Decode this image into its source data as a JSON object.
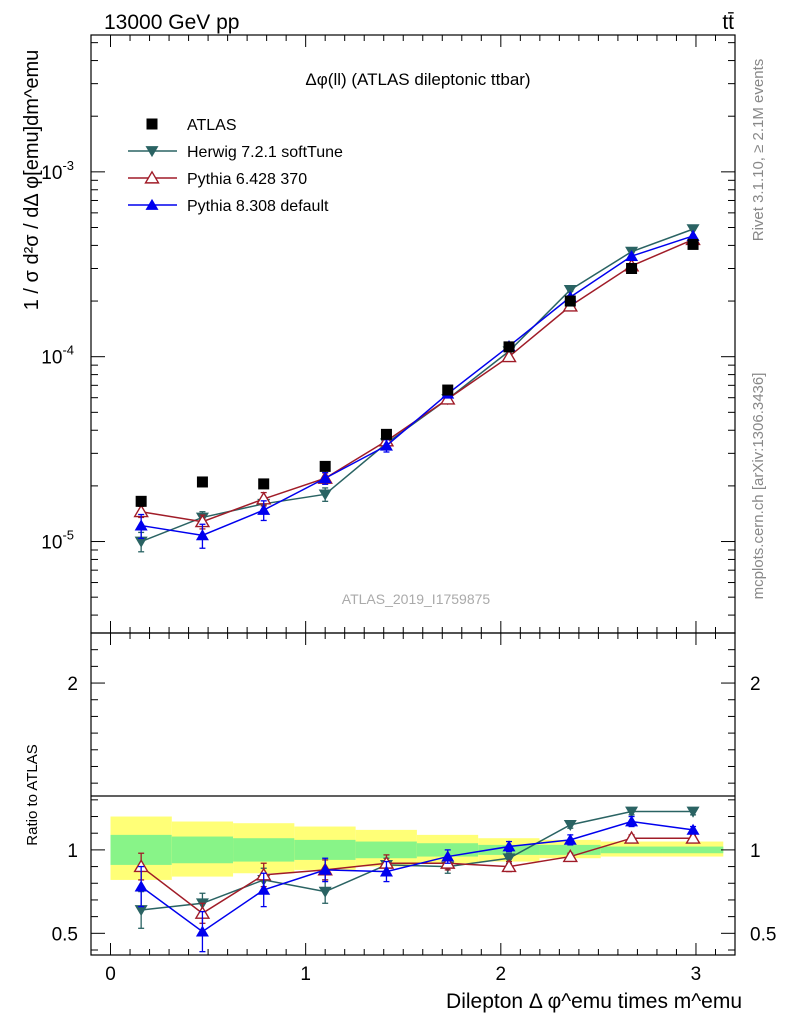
{
  "header": {
    "energy_label": "13000 GeV pp",
    "process_label": "tt̄"
  },
  "side_labels": {
    "rivet": "Rivet 3.1.10, ≥ 2.1M events",
    "mcplots": "mcplots.cern.ch [arXiv:1306.3436]"
  },
  "chart_data": [
    {
      "type": "scatter",
      "title": "Δφ(ll) (ATLAS dileptonic ttbar)",
      "watermark": "ATLAS_2019_I1759875",
      "ylabel": "1 / σ d²σ / dΔ φ[emu]dm^emu",
      "xlabel": "Dilepton Δ φ^emu times m^emu",
      "xlim": [
        -0.1,
        3.2
      ],
      "ylim": [
        3.2e-06,
        0.0055
      ],
      "yscale": "log",
      "x_ticks": [
        "0",
        "1",
        "2",
        "3"
      ],
      "y_ticks": [
        "10^-5",
        "10^-4",
        "10^-3"
      ],
      "legend_position": "top-left",
      "x": [
        0.157,
        0.471,
        0.785,
        1.1,
        1.414,
        1.728,
        2.042,
        2.356,
        2.67,
        2.985
      ],
      "series": [
        {
          "name": "ATLAS",
          "marker": "square",
          "color": "#000000",
          "values": [
            1.65e-05,
            2.1e-05,
            2.05e-05,
            2.55e-05,
            3.8e-05,
            6.6e-05,
            0.000113,
            0.0002,
            0.0003,
            0.000405
          ]
        },
        {
          "name": "Herwig 7.2.1 softTune",
          "marker": "triangle-down",
          "color": "#2a6363",
          "values": [
            1e-05,
            1.35e-05,
            1.6e-05,
            1.8e-05,
            3.4e-05,
            5.9e-05,
            0.000107,
            0.00023,
            0.00037,
            0.00049
          ],
          "errors": [
            1.2e-06,
            1e-06,
            1.2e-06,
            1.5e-06,
            1.2e-06,
            1.5e-06,
            3e-06,
            4e-06,
            5e-06,
            5e-06
          ]
        },
        {
          "name": "Pythia 6.428 370",
          "marker": "triangle-open",
          "color": "#a01c28",
          "values": [
            1.45e-05,
            1.28e-05,
            1.7e-05,
            2.2e-05,
            3.5e-05,
            5.9e-05,
            0.0001,
            0.000188,
            0.00031,
            0.00043
          ],
          "errors": [
            1e-06,
            1.1e-06,
            1.4e-06,
            1.5e-06,
            1.5e-06,
            2e-06,
            3e-06,
            4e-06,
            5e-06,
            5e-06
          ]
        },
        {
          "name": "Pythia 8.308 default",
          "marker": "triangle-up",
          "color": "#0000ee",
          "values": [
            1.22e-05,
            1.08e-05,
            1.48e-05,
            2.2e-05,
            3.3e-05,
            6.3e-05,
            0.000114,
            0.00021,
            0.00035,
            0.00045
          ],
          "errors": [
            1.8e-06,
            1.6e-06,
            1.8e-06,
            1.6e-06,
            2.5e-06,
            2e-06,
            3e-06,
            4e-06,
            5e-06,
            5e-06
          ]
        }
      ]
    },
    {
      "type": "scatter",
      "ylabel": "Ratio to ATLAS",
      "xlim": [
        -0.1,
        3.2
      ],
      "ylim": [
        0.37,
        2.3
      ],
      "x_ticks": [
        "0",
        "1",
        "2",
        "3"
      ],
      "y_ticks": [
        "0.5",
        "1",
        "2"
      ],
      "reference_line": 1,
      "x": [
        0.157,
        0.471,
        0.785,
        1.1,
        1.414,
        1.728,
        2.042,
        2.356,
        2.67,
        2.985
      ],
      "bin_edges": [
        0,
        0.314,
        0.628,
        0.942,
        1.256,
        1.57,
        1.884,
        2.198,
        2.512,
        2.826,
        3.14
      ],
      "band_inner": [
        [
          0.91,
          1.09
        ],
        [
          0.92,
          1.08
        ],
        [
          0.93,
          1.07
        ],
        [
          0.94,
          1.06
        ],
        [
          0.95,
          1.05
        ],
        [
          0.96,
          1.04
        ],
        [
          0.97,
          1.03
        ],
        [
          0.97,
          1.03
        ],
        [
          0.98,
          1.02
        ],
        [
          0.98,
          1.02
        ]
      ],
      "band_outer": [
        [
          0.82,
          1.2
        ],
        [
          0.84,
          1.17
        ],
        [
          0.86,
          1.16
        ],
        [
          0.88,
          1.14
        ],
        [
          0.9,
          1.12
        ],
        [
          0.92,
          1.09
        ],
        [
          0.93,
          1.07
        ],
        [
          0.95,
          1.06
        ],
        [
          0.96,
          1.05
        ],
        [
          0.96,
          1.05
        ]
      ],
      "series": [
        {
          "name": "Herwig 7.2.1 softTune",
          "color": "#2a6363",
          "marker": "triangle-down",
          "values": [
            0.64,
            0.68,
            0.82,
            0.75,
            0.91,
            0.9,
            0.95,
            1.15,
            1.23,
            1.23
          ],
          "errors": [
            0.11,
            0.06,
            0.07,
            0.07,
            0.04,
            0.04,
            0.03,
            0.02,
            0.02,
            0.02
          ]
        },
        {
          "name": "Pythia 6.428 370",
          "color": "#a01c28",
          "marker": "triangle-open",
          "values": [
            0.9,
            0.62,
            0.85,
            0.88,
            0.92,
            0.92,
            0.9,
            0.96,
            1.07,
            1.07
          ],
          "errors": [
            0.08,
            0.06,
            0.07,
            0.06,
            0.05,
            0.04,
            0.03,
            0.02,
            0.02,
            0.02
          ]
        },
        {
          "name": "Pythia 8.308 default",
          "color": "#0000ee",
          "marker": "triangle-up",
          "values": [
            0.78,
            0.51,
            0.76,
            0.88,
            0.87,
            0.96,
            1.02,
            1.06,
            1.17,
            1.12
          ],
          "errors": [
            0.12,
            0.12,
            0.1,
            0.07,
            0.06,
            0.04,
            0.03,
            0.03,
            0.03,
            0.02
          ]
        }
      ]
    }
  ]
}
